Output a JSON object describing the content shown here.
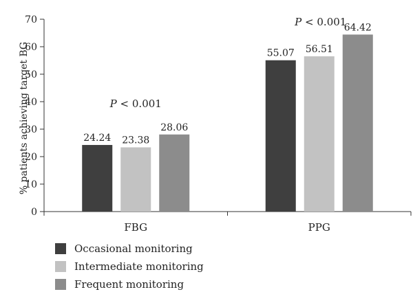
{
  "chart_data": {
    "type": "bar",
    "ylabel": "% patients achieving target BG",
    "ylim": [
      0,
      70
    ],
    "yticks": [
      0,
      10,
      20,
      30,
      40,
      50,
      60,
      70
    ],
    "categories": [
      "FBG",
      "PPG"
    ],
    "series": [
      {
        "name": "Occasional monitoring",
        "color": "#3f3f3f",
        "values": [
          24.24,
          55.07
        ]
      },
      {
        "name": "Intermediate monitoring",
        "color": "#c2c2c2",
        "values": [
          23.38,
          56.51
        ]
      },
      {
        "name": "Frequent monitoring",
        "color": "#8c8c8c",
        "values": [
          28.06,
          64.42
        ]
      }
    ],
    "value_labels": [
      [
        "24.24",
        "55.07"
      ],
      [
        "23.38",
        "56.51"
      ],
      [
        "28.06",
        "64.42"
      ]
    ],
    "annotations": [
      "< 0.001",
      "< 0.001"
    ],
    "annotation_prefix": "P",
    "legend_position": "bottom-left",
    "grid": false
  }
}
